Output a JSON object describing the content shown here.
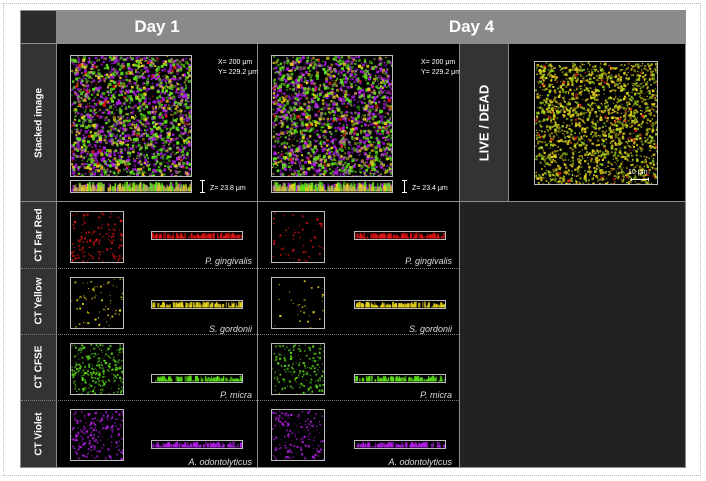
{
  "columns": {
    "day1": "Day 1",
    "day4": "Day 4"
  },
  "rows": {
    "stacked": "Stacked image",
    "far_red": "CT Far Red",
    "yellow": "CT Yellow",
    "cfse": "CT CFSE",
    "violet": "CT Violet"
  },
  "live_dead": {
    "label": "LIVE / DEAD",
    "scale": "10 μm"
  },
  "day1": {
    "x": "X= 200 μm",
    "y": "Y= 229.2 μm",
    "z": "Z= 23.8 μm",
    "species": {
      "far_red": "P. gingivalis",
      "yellow": "S. gordonii",
      "cfse": "P. micra",
      "violet": "A. odontolyticus"
    }
  },
  "day4": {
    "x": "X= 200 μm",
    "y": "Y= 229.2 μm",
    "z": "Z= 23.4 μm",
    "species": {
      "far_red": "P. gingivalis",
      "yellow": "S. gordonii",
      "cfse": "P. micra",
      "violet": "A. odontolyticus"
    }
  },
  "colors": {
    "far_red": "#e01414",
    "yellow": "#e6d21e",
    "cfse": "#5ee01a",
    "violet": "#b21ee6",
    "tan": "#c8a06e",
    "live_dead_green": "#9ed21a"
  }
}
